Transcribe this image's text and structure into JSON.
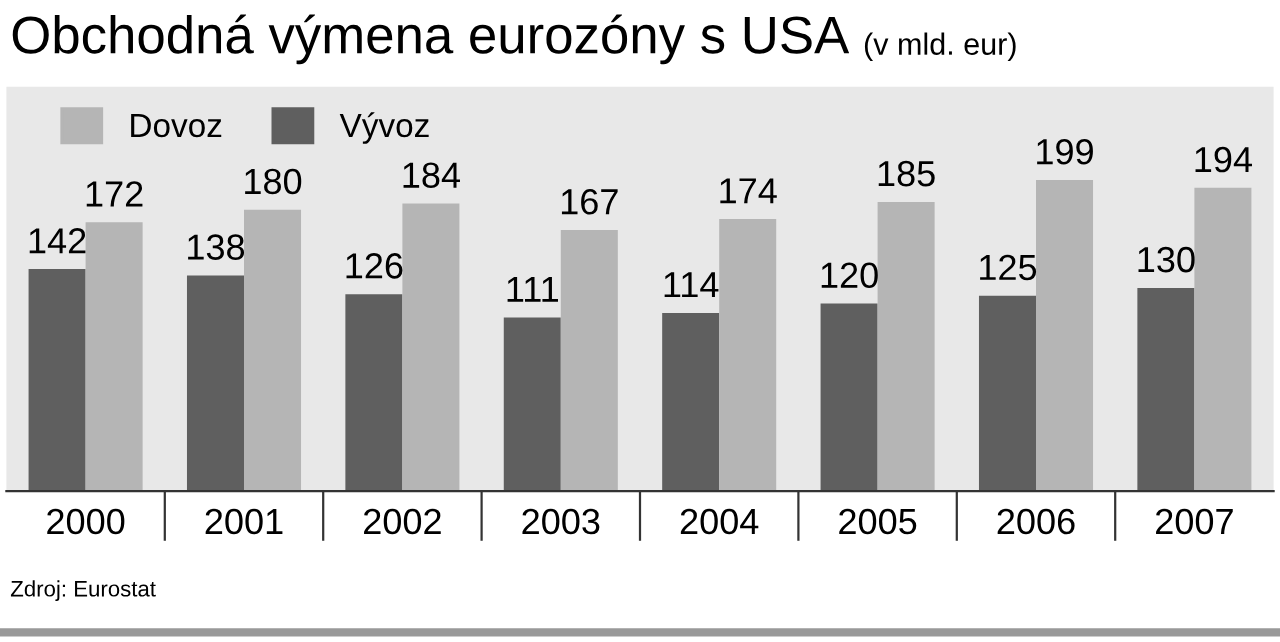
{
  "chart_data": {
    "type": "bar",
    "title": "Obchodná výmena eurozóny s USA",
    "subtitle": "(v mld. eur)",
    "categories": [
      "2000",
      "2001",
      "2002",
      "2003",
      "2004",
      "2005",
      "2006",
      "2007"
    ],
    "series": [
      {
        "name": "Vývoz",
        "color": "#5f5f5f",
        "values": [
          142,
          138,
          126,
          111,
          114,
          120,
          125,
          130
        ]
      },
      {
        "name": "Dovoz",
        "color": "#b5b5b5",
        "values": [
          172,
          180,
          184,
          167,
          174,
          185,
          199,
          194
        ]
      }
    ],
    "data_labels": true,
    "legend": "top left",
    "grid": false,
    "annotations": [
      "Zdroj: Eurostat"
    ]
  }
}
